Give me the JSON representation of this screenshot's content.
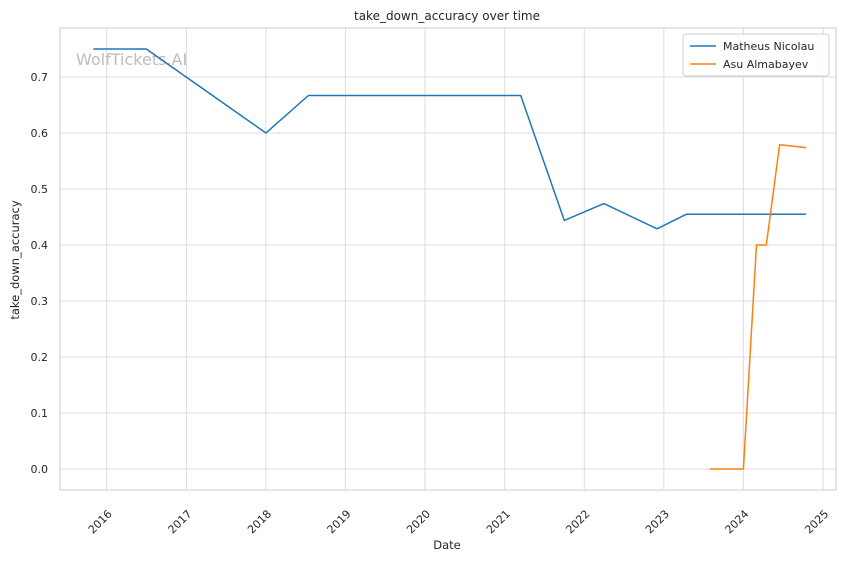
{
  "watermark": "WolfTickets.AI",
  "chart_data": {
    "type": "line",
    "title": "take_down_accuracy over time",
    "xlabel": "Date",
    "ylabel": "take_down_accuracy",
    "xlim": [
      "2015-06-01",
      "2025-03-01"
    ],
    "ylim": [
      -0.0375,
      0.7875
    ],
    "x_ticks": [
      "2016",
      "2017",
      "2018",
      "2019",
      "2020",
      "2021",
      "2022",
      "2023",
      "2024",
      "2025"
    ],
    "y_ticks": [
      "0.0",
      "0.1",
      "0.2",
      "0.3",
      "0.4",
      "0.5",
      "0.6",
      "0.7"
    ],
    "grid": true,
    "legend_position": "top-right",
    "series": [
      {
        "name": "Matheus Nicolau",
        "color": "#1f77b4",
        "points": [
          {
            "x": "2015-11-01",
            "y": 0.75
          },
          {
            "x": "2016-07-01",
            "y": 0.75
          },
          {
            "x": "2018-01-01",
            "y": 0.6
          },
          {
            "x": "2018-07-15",
            "y": 0.667
          },
          {
            "x": "2021-03-15",
            "y": 0.667
          },
          {
            "x": "2021-10-01",
            "y": 0.444
          },
          {
            "x": "2022-04-01",
            "y": 0.474
          },
          {
            "x": "2022-12-01",
            "y": 0.429
          },
          {
            "x": "2023-04-15",
            "y": 0.455
          },
          {
            "x": "2024-10-15",
            "y": 0.455
          }
        ]
      },
      {
        "name": "Asu Almabayev",
        "color": "#ff7f0e",
        "points": [
          {
            "x": "2023-08-01",
            "y": 0.0
          },
          {
            "x": "2024-01-01",
            "y": 0.0
          },
          {
            "x": "2024-03-01",
            "y": 0.4
          },
          {
            "x": "2024-04-15",
            "y": 0.4
          },
          {
            "x": "2024-06-15",
            "y": 0.579
          },
          {
            "x": "2024-10-15",
            "y": 0.574
          }
        ]
      }
    ]
  }
}
